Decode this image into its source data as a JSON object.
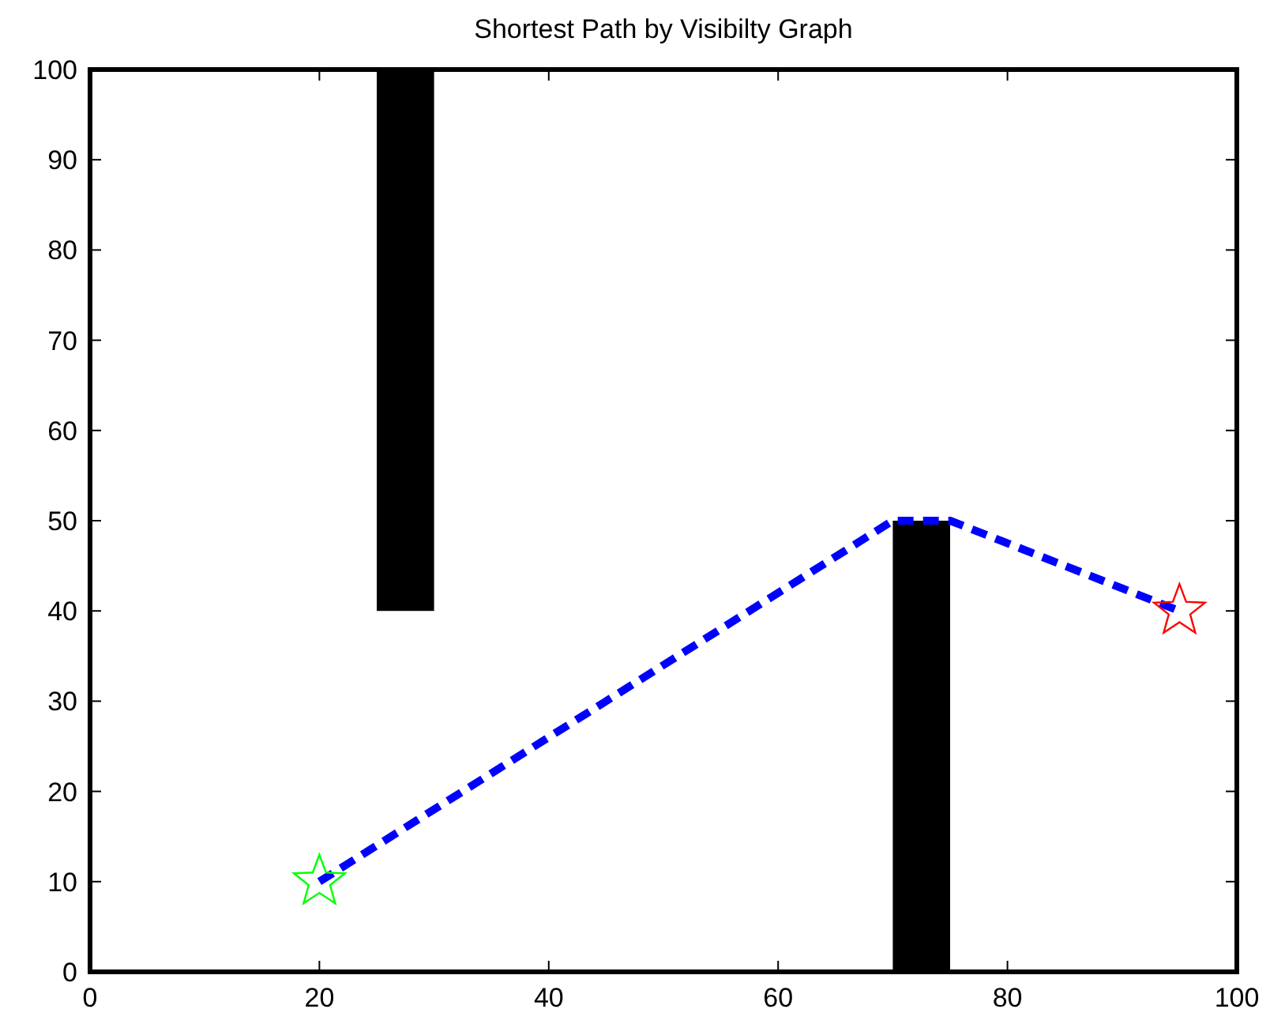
{
  "chart_data": {
    "type": "line",
    "title": "Shortest Path by Visibilty Graph",
    "xlim": [
      0,
      100
    ],
    "ylim": [
      0,
      100
    ],
    "xticks": [
      0,
      20,
      40,
      60,
      80,
      100
    ],
    "yticks": [
      0,
      10,
      20,
      30,
      40,
      50,
      60,
      70,
      80,
      90,
      100
    ],
    "grid": false,
    "series": [
      {
        "type": "bar",
        "color": "#000000",
        "x": [
          27.5,
          72.5
        ],
        "base": [
          40,
          0
        ],
        "values": [
          60,
          50
        ]
      },
      {
        "color": "#0000ff",
        "line_style": "dashed",
        "marker": "none",
        "x": [
          20,
          70,
          75,
          95
        ],
        "values": [
          10,
          50,
          50,
          40
        ]
      },
      {
        "type": "scatter",
        "color": "#00ff00",
        "marker": "star",
        "x": [
          20
        ],
        "values": [
          10
        ]
      },
      {
        "type": "scatter",
        "color": "#ff0000",
        "marker": "star",
        "x": [
          95
        ],
        "values": [
          40
        ]
      }
    ]
  }
}
